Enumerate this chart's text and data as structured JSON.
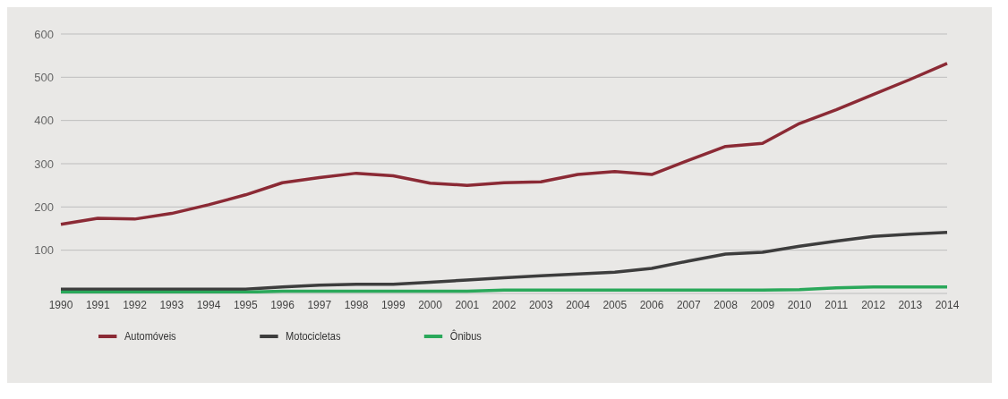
{
  "chart_data": {
    "type": "line",
    "categories": [
      "1990",
      "1991",
      "1992",
      "1993",
      "1994",
      "1995",
      "1996",
      "1997",
      "1998",
      "1999",
      "2000",
      "2001",
      "2002",
      "2003",
      "2004",
      "2005",
      "2006",
      "2007",
      "2008",
      "2009",
      "2010",
      "2011",
      "2012",
      "2013",
      "2014"
    ],
    "series": [
      {
        "name": "Automóveis",
        "color": "#8b2a35",
        "values": [
          160,
          174,
          172,
          185,
          205,
          228,
          256,
          268,
          278,
          272,
          255,
          250,
          256,
          258,
          275,
          282,
          275,
          308,
          340,
          347,
          393,
          425,
          460,
          495,
          532
        ]
      },
      {
        "name": "Motocicletas",
        "color": "#3d3d3d",
        "values": [
          10,
          10,
          10,
          10,
          10,
          10,
          15,
          19,
          21,
          21,
          26,
          31,
          36,
          41,
          45,
          49,
          58,
          75,
          91,
          95,
          109,
          121,
          132,
          137,
          141
        ]
      },
      {
        "name": "Ônibus",
        "color": "#2aa85a",
        "values": [
          3,
          3,
          3,
          3,
          3,
          3,
          5,
          5,
          5,
          5,
          5,
          5,
          8,
          8,
          8,
          8,
          8,
          8,
          8,
          8,
          9,
          13,
          15,
          15,
          15
        ]
      }
    ],
    "ylim": [
      0,
      600
    ],
    "yticks": [
      {
        "value": 0,
        "label": null
      },
      100,
      200,
      300,
      400,
      500,
      600
    ],
    "grid": "y",
    "legend": "bottom left",
    "marker": "none",
    "line_style": "solid"
  }
}
